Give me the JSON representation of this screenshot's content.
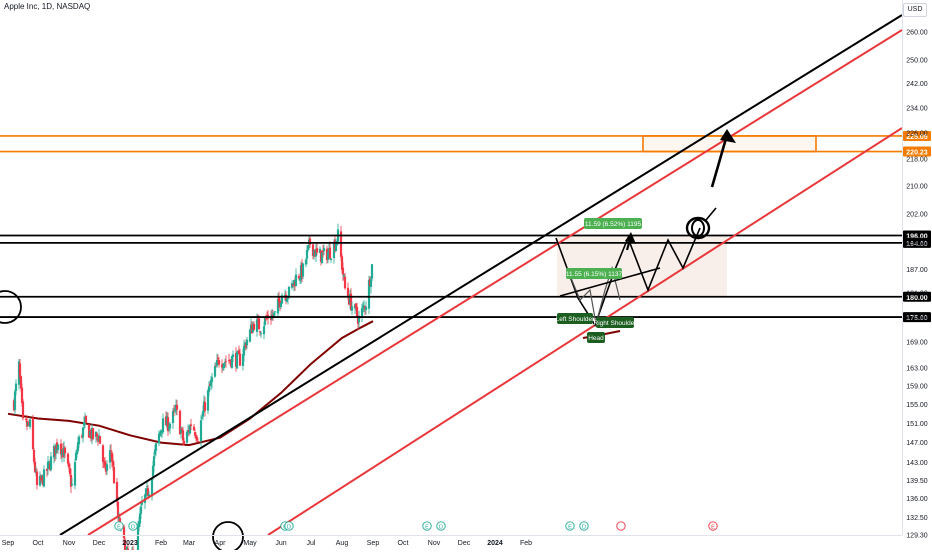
{
  "header": {
    "symbol": "Apple Inc, 1D, NASDAQ",
    "currency": "USD"
  },
  "colors": {
    "up": "#22ab94",
    "down": "#f23645",
    "black": "#000000",
    "red_channel": "#e8383b",
    "orange": "#f57c00",
    "ma": "#800000",
    "green_label": "#4caf50",
    "dark_green": "#1b5e20",
    "axis_text": "#131722"
  },
  "chart_data": {
    "type": "candlestick",
    "title": "Apple Inc, 1D, NASDAQ",
    "xlabel": "",
    "ylabel": "",
    "x_ticks": [
      "Sep",
      "Oct",
      "Nov",
      "Dec",
      "2023",
      "Feb",
      "Mar",
      "Apr",
      "May",
      "Jun",
      "Jul",
      "Aug",
      "Sep",
      "Oct",
      "Nov",
      "Dec",
      "2024",
      "Feb"
    ],
    "y_ticks": [
      129.3,
      132.5,
      136,
      139.5,
      143,
      147,
      151,
      155,
      159,
      163,
      169,
      175,
      181,
      187,
      194,
      202,
      210,
      218,
      226,
      234,
      242,
      250,
      260
    ],
    "ylim": [
      127.5,
      268
    ],
    "price_scale": "log",
    "grid": false,
    "price_path": [
      [
        "2022-09-07",
        155.5
      ],
      [
        "2022-09-12",
        163.4
      ],
      [
        "2022-09-16",
        150.7
      ],
      [
        "2022-09-23",
        150.4
      ],
      [
        "2022-09-30",
        138.2
      ],
      [
        "2022-10-07",
        140.1
      ],
      [
        "2022-10-13",
        142.9
      ],
      [
        "2022-10-21",
        147.3
      ],
      [
        "2022-10-27",
        144.8
      ],
      [
        "2022-11-04",
        138.4
      ],
      [
        "2022-11-10",
        146.9
      ],
      [
        "2022-11-17",
        150.7
      ],
      [
        "2022-11-25",
        148.1
      ],
      [
        "2022-12-01",
        148.3
      ],
      [
        "2022-12-07",
        140.9
      ],
      [
        "2022-12-13",
        145.5
      ],
      [
        "2022-12-20",
        132.3
      ],
      [
        "2022-12-28",
        126.1
      ],
      [
        "2023-01-05",
        125.0
      ],
      [
        "2023-01-13",
        134.8
      ],
      [
        "2023-01-20",
        137.9
      ],
      [
        "2023-01-27",
        145.9
      ],
      [
        "2023-02-02",
        150.8
      ],
      [
        "2023-02-10",
        151.0
      ],
      [
        "2023-02-16",
        153.7
      ],
      [
        "2023-02-24",
        146.7
      ],
      [
        "2023-03-03",
        151.0
      ],
      [
        "2023-03-10",
        148.5
      ],
      [
        "2023-03-17",
        155.0
      ],
      [
        "2023-03-24",
        160.3
      ],
      [
        "2023-03-31",
        164.9
      ],
      [
        "2023-04-06",
        164.7
      ],
      [
        "2023-04-14",
        165.2
      ],
      [
        "2023-04-21",
        165.0
      ],
      [
        "2023-04-28",
        169.7
      ],
      [
        "2023-05-05",
        173.6
      ],
      [
        "2023-05-12",
        172.6
      ],
      [
        "2023-05-19",
        175.2
      ],
      [
        "2023-05-26",
        175.4
      ],
      [
        "2023-06-02",
        180.9
      ],
      [
        "2023-06-09",
        180.96
      ],
      [
        "2023-06-16",
        184.9
      ],
      [
        "2023-06-23",
        186.7
      ],
      [
        "2023-06-30",
        193.97
      ],
      [
        "2023-07-07",
        190.7
      ],
      [
        "2023-07-14",
        190.7
      ],
      [
        "2023-07-21",
        191.9
      ],
      [
        "2023-07-28",
        195.8
      ],
      [
        "2023-08-04",
        181.99
      ],
      [
        "2023-08-11",
        177.8
      ],
      [
        "2023-08-18",
        174.5
      ],
      [
        "2023-08-25",
        178.6
      ],
      [
        "2023-09-01",
        189.5
      ]
    ],
    "moving_average_200": [
      [
        "2022-09-01",
        153.0
      ],
      [
        "2022-10-01",
        152.0
      ],
      [
        "2022-11-01",
        151.5
      ],
      [
        "2022-12-01",
        150.5
      ],
      [
        "2023-01-01",
        148.5
      ],
      [
        "2023-02-01",
        147.0
      ],
      [
        "2023-03-01",
        146.5
      ],
      [
        "2023-04-01",
        148.0
      ],
      [
        "2023-05-01",
        152.0
      ],
      [
        "2023-06-01",
        157.5
      ],
      [
        "2023-07-01",
        164.0
      ],
      [
        "2023-08-01",
        170.0
      ],
      [
        "2023-08-20",
        172.5
      ],
      [
        "2023-09-01",
        174.0
      ]
    ],
    "horizontal_levels": [
      {
        "label": "225.05",
        "value": 225.05,
        "color": "orange"
      },
      {
        "label": "220.23",
        "value": 220.23,
        "color": "orange"
      },
      {
        "label": "196.00",
        "value": 196.0,
        "color": "black"
      },
      {
        "label": "194.00",
        "value": 194.0,
        "color": "black"
      },
      {
        "label": "180.00",
        "value": 180.0,
        "color": "black"
      },
      {
        "label": "175.00",
        "value": 175.0,
        "color": "black"
      }
    ],
    "target_zone": {
      "from": 220.23,
      "to": 225.05
    },
    "measure_labels": [
      "11.59 (6.52%) 1195",
      "11.55 (6.15%) 1137"
    ],
    "pattern_labels": {
      "left_shoulder": "Left Shoulder",
      "right_shoulder": "Right Shoulder",
      "head": "Head"
    },
    "event_markers": [
      "E",
      "D",
      "E",
      "D",
      "E",
      "D",
      "E",
      "D",
      "E",
      "D",
      "E",
      "D"
    ]
  }
}
